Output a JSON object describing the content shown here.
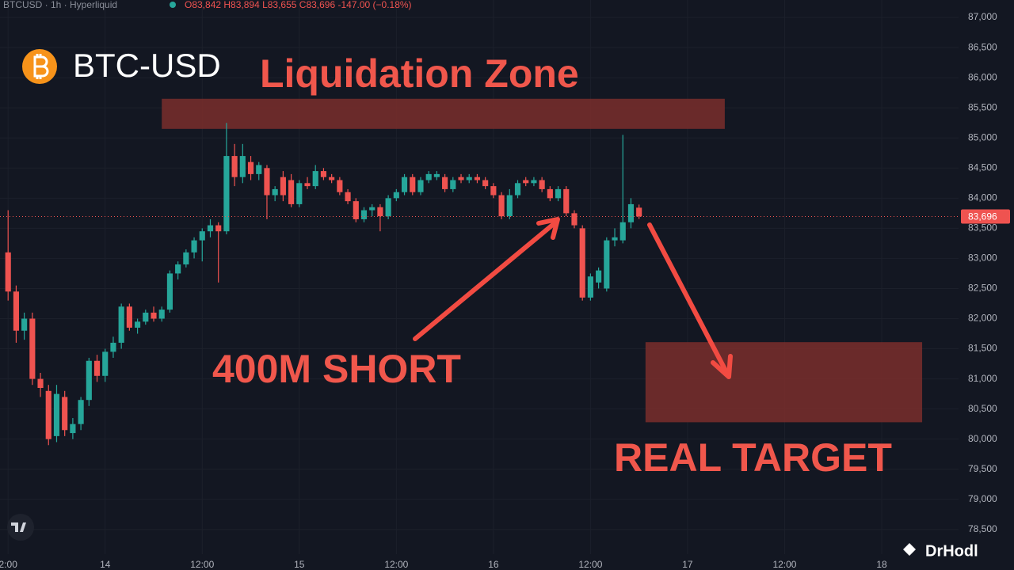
{
  "header": {
    "symbol_line": "BTCUSD · 1h · Hyperliquid",
    "ohlc_line": "O83,842 H83,894 L83,655 C83,696 -147.00 (−0.18%)"
  },
  "watermark": "DrHodl",
  "chart_data": {
    "type": "candlestick",
    "title": "BTC-USD",
    "x": [
      -12,
      -11,
      -10,
      -9,
      -8,
      -7,
      -6,
      -5,
      -4,
      -3,
      -2,
      -1,
      0,
      1,
      2,
      3,
      4,
      5,
      6,
      7,
      8,
      9,
      10,
      11,
      12,
      13,
      14,
      15,
      16,
      17,
      18,
      19,
      20,
      21,
      22,
      23,
      24,
      25,
      26,
      27,
      28,
      29,
      30,
      31,
      32,
      33,
      34,
      35,
      36,
      37,
      38,
      39,
      40,
      41,
      42,
      43,
      44,
      45,
      46,
      47,
      48,
      49,
      50,
      51,
      52,
      53,
      54,
      55,
      56,
      57,
      58,
      59,
      60,
      61,
      62,
      63,
      64,
      65,
      66
    ],
    "open": [
      83100,
      82450,
      81800,
      82000,
      81000,
      80800,
      80050,
      80700,
      80100,
      80250,
      80650,
      81300,
      81050,
      81450,
      81600,
      82200,
      81850,
      81950,
      82100,
      82000,
      82150,
      82750,
      82900,
      83100,
      83300,
      83450,
      83550,
      83450,
      84700,
      84350,
      84600,
      84400,
      84500,
      84050,
      84350,
      84300,
      83900,
      84250,
      84200,
      84450,
      84350,
      84300,
      84100,
      83950,
      83650,
      83800,
      83850,
      83700,
      84000,
      84100,
      84350,
      84100,
      84300,
      84350,
      84350,
      84150,
      84350,
      84300,
      84350,
      84300,
      84200,
      84050,
      83700,
      84050,
      84300,
      84250,
      84300,
      84150,
      84000,
      84150,
      83750,
      83500,
      82350,
      82600,
      82500,
      83300,
      83300,
      83600,
      83842
    ],
    "high": [
      83800,
      82550,
      82100,
      82100,
      81100,
      80900,
      80900,
      80800,
      80350,
      80700,
      81350,
      81400,
      81500,
      81700,
      82250,
      82250,
      82000,
      82150,
      82200,
      82200,
      82800,
      82950,
      83150,
      83350,
      83500,
      83650,
      83600,
      85250,
      84900,
      84900,
      84700,
      84600,
      84550,
      84200,
      84450,
      84400,
      84300,
      84350,
      84550,
      84500,
      84400,
      84350,
      84150,
      84000,
      83850,
      83900,
      83900,
      84050,
      84150,
      84400,
      84400,
      84350,
      84450,
      84450,
      84400,
      84350,
      84400,
      84400,
      84400,
      84350,
      84250,
      84100,
      84150,
      84300,
      84350,
      84350,
      84350,
      84200,
      84200,
      84200,
      83800,
      83550,
      82750,
      82850,
      83350,
      83500,
      85050,
      84000,
      83894
    ],
    "low": [
      82300,
      81600,
      81650,
      80900,
      80700,
      79900,
      79950,
      80050,
      80000,
      80150,
      80550,
      80950,
      80950,
      81350,
      81500,
      81800,
      81750,
      81900,
      81950,
      81950,
      82100,
      82650,
      82850,
      83000,
      82950,
      83350,
      82600,
      83400,
      84200,
      84250,
      84300,
      84300,
      83650,
      83950,
      83950,
      83850,
      83850,
      84150,
      84150,
      84300,
      84250,
      84050,
      83900,
      83600,
      83600,
      83700,
      83450,
      83650,
      83950,
      84050,
      84050,
      84050,
      84250,
      84300,
      84100,
      84100,
      84250,
      84250,
      84250,
      84150,
      84000,
      83650,
      83650,
      84000,
      84200,
      84200,
      84100,
      83950,
      83950,
      83700,
      83500,
      82300,
      82300,
      82500,
      82450,
      83200,
      83250,
      83500,
      83655
    ],
    "close": [
      82450,
      81800,
      82000,
      81000,
      80850,
      80000,
      80750,
      80150,
      80250,
      80650,
      81300,
      81050,
      81450,
      81600,
      82200,
      81850,
      81950,
      82100,
      82000,
      82150,
      82750,
      82900,
      83100,
      83300,
      83450,
      83550,
      83450,
      84700,
      84350,
      84700,
      84400,
      84550,
      84050,
      84150,
      84050,
      83900,
      84250,
      84200,
      84450,
      84350,
      84300,
      84100,
      83950,
      83650,
      83800,
      83850,
      83700,
      84000,
      84100,
      84350,
      84100,
      84300,
      84400,
      84400,
      84150,
      84300,
      84300,
      84350,
      84300,
      84200,
      84050,
      83700,
      84050,
      84250,
      84250,
      84300,
      84150,
      84000,
      84150,
      83750,
      83550,
      82350,
      82700,
      82800,
      83300,
      83350,
      83600,
      83900,
      83696
    ],
    "up_color": "#26a69a",
    "down_color": "#ef5350",
    "xlim": [
      -13,
      105.5
    ],
    "ylim": [
      78090,
      87290
    ],
    "xticks": [
      {
        "value": -12,
        "label": "2:00"
      },
      {
        "value": 0,
        "label": "14"
      },
      {
        "value": 12,
        "label": "12:00"
      },
      {
        "value": 24,
        "label": "15"
      },
      {
        "value": 36,
        "label": "12:00"
      },
      {
        "value": 48,
        "label": "16"
      },
      {
        "value": 60,
        "label": "12:00"
      },
      {
        "value": 72,
        "label": "17"
      },
      {
        "value": 84,
        "label": "12:00"
      },
      {
        "value": 96,
        "label": "18"
      }
    ],
    "yticks": [
      {
        "value": 78500,
        "label": "78,500"
      },
      {
        "value": 79000,
        "label": "79,000"
      },
      {
        "value": 79500,
        "label": "79,500"
      },
      {
        "value": 80000,
        "label": "80,000"
      },
      {
        "value": 80500,
        "label": "80,500"
      },
      {
        "value": 81000,
        "label": "81,000"
      },
      {
        "value": 81500,
        "label": "81,500"
      },
      {
        "value": 82000,
        "label": "82,000"
      },
      {
        "value": 82500,
        "label": "82,500"
      },
      {
        "value": 83000,
        "label": "83,000"
      },
      {
        "value": 83500,
        "label": "83,500"
      },
      {
        "value": 84000,
        "label": "84,000"
      },
      {
        "value": 84500,
        "label": "84,500"
      },
      {
        "value": 85000,
        "label": "85,000"
      },
      {
        "value": 85500,
        "label": "85,500"
      },
      {
        "value": 86000,
        "label": "86,000"
      },
      {
        "value": 86500,
        "label": "86,500"
      },
      {
        "value": 87000,
        "label": "87,000"
      }
    ],
    "grid": true,
    "last_price": {
      "value": 83696,
      "label": "83,696"
    },
    "zones": [
      {
        "label": "Liquidation Zone",
        "x": [
          7,
          76.6
        ],
        "y": [
          85150,
          85650
        ]
      },
      {
        "label": "REAL TARGET",
        "x": [
          66.8,
          101
        ],
        "y": [
          80280,
          81610
        ]
      }
    ],
    "annotations": [
      "400M SHORT"
    ]
  }
}
